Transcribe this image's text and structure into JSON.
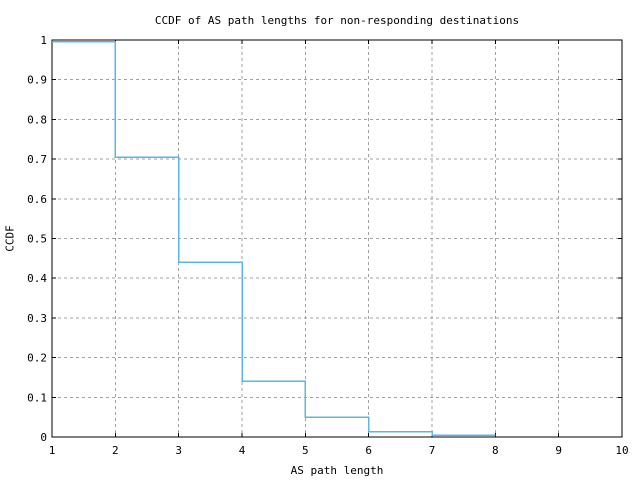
{
  "chart_data": {
    "type": "line",
    "line_style": "step-post",
    "title": "CCDF of AS path lengths for non-responding destinations",
    "xlabel": "AS path length",
    "ylabel": "CCDF",
    "x": [
      1,
      2,
      3,
      4,
      5,
      6,
      7
    ],
    "y": [
      0.995,
      0.705,
      0.44,
      0.14,
      0.05,
      0.013,
      0.005
    ],
    "line_end_x": 8,
    "xlim": [
      1,
      10
    ],
    "ylim": [
      0,
      1
    ],
    "x_ticks": [
      1,
      2,
      3,
      4,
      5,
      6,
      7,
      8,
      9,
      10
    ],
    "x_tick_labels": [
      "1",
      "2",
      "3",
      "4",
      "5",
      "6",
      "7",
      "8",
      "9",
      "10"
    ],
    "y_ticks": [
      0,
      0.1,
      0.2,
      0.3,
      0.4,
      0.5,
      0.6,
      0.7,
      0.8,
      0.9,
      1
    ],
    "y_tick_labels": [
      "0",
      "0.1",
      "0.2",
      "0.3",
      "0.4",
      "0.5",
      "0.6",
      "0.7",
      "0.8",
      "0.9",
      "1"
    ],
    "grid": true,
    "legend": "none",
    "colors": {
      "line": "#5cb5e5",
      "grid": "#a0a0a0",
      "axis": "#000000",
      "background": "#ffffff"
    }
  }
}
